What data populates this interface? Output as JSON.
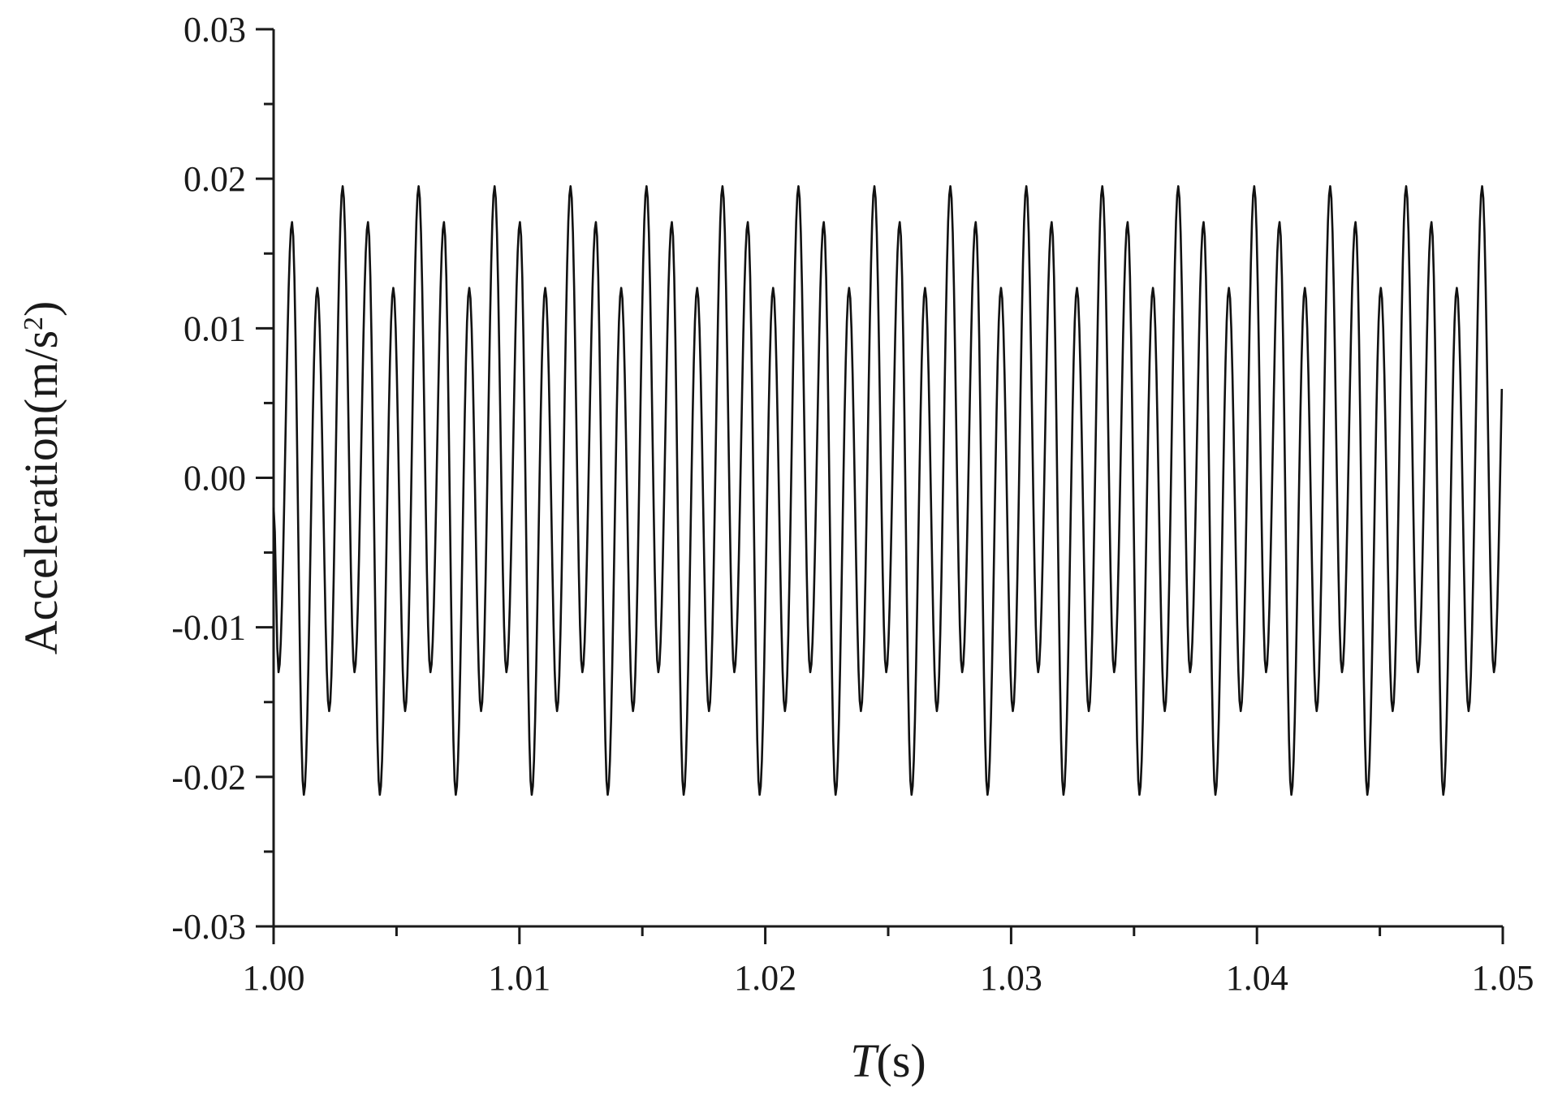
{
  "chart_data": {
    "type": "line",
    "title": "",
    "xlabel": {
      "main": "T",
      "unit": "(s)"
    },
    "ylabel": {
      "main": "Acceleration(m/s",
      "sup": "2",
      "close": ")"
    },
    "xlim": [
      1.0,
      1.05
    ],
    "ylim": [
      -0.03,
      0.03
    ],
    "x_ticks": [
      1.0,
      1.01,
      1.02,
      1.03,
      1.04,
      1.05
    ],
    "x_tick_labels": [
      "1.00",
      "1.01",
      "1.02",
      "1.03",
      "1.04",
      "1.05"
    ],
    "x_minor_step": 0.005,
    "y_ticks": [
      0.03,
      0.02,
      0.01,
      0.0,
      -0.01,
      -0.02,
      -0.03
    ],
    "y_tick_labels": [
      "0.03",
      "0.02",
      "0.01",
      "0.00",
      "-0.01",
      "-0.02",
      "-0.03"
    ],
    "y_minor_step": 0.005,
    "grid": false,
    "legend": "none",
    "series": [
      {
        "color": "#111111",
        "x_start": 1.0,
        "x_end": 1.05,
        "sample_step": 5e-05,
        "pattern_period": 0.00309,
        "peak_values": [
          0.0171,
          0.0127,
          0.0195
        ],
        "trough_values": [
          -0.013,
          -0.0212,
          -0.0156
        ],
        "first_peak_x": 1.00075,
        "first_trough_x": 1.0002
      }
    ]
  }
}
